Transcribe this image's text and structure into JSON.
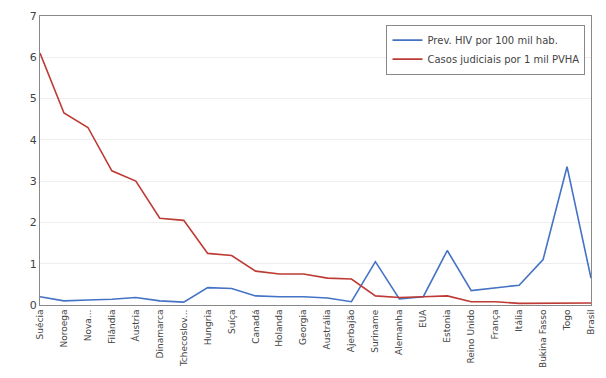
{
  "chart_data": {
    "type": "line",
    "categories": [
      "Suécia",
      "Noroega",
      "Nova...",
      "Filândia",
      "Áustria",
      "Dinamarca",
      "Tchecoslov...",
      "Hungria",
      "Suíça",
      "Canadá",
      "Holanda",
      "Georgia",
      "Austrália",
      "Ajerbajão",
      "Suriname",
      "Alemanha",
      "EUA",
      "Estonia",
      "Reino Unido",
      "França",
      "Itália",
      "Bukina Fasso",
      "Togo",
      "Brasil"
    ],
    "series": [
      {
        "name": "Prev. HIV por 100 mil hab.",
        "color": "#4472C4",
        "values": [
          0.2,
          0.1,
          0.12,
          0.14,
          0.18,
          0.1,
          0.07,
          0.42,
          0.4,
          0.22,
          0.2,
          0.2,
          0.17,
          0.08,
          1.05,
          0.15,
          0.2,
          1.32,
          0.35,
          0.42,
          0.48,
          1.1,
          3.35,
          0.65
        ]
      },
      {
        "name": "Casos judiciais por 1 mil PVHA",
        "color": "#BE3A34",
        "values": [
          6.1,
          4.65,
          4.3,
          3.25,
          3.0,
          2.1,
          2.05,
          1.25,
          1.2,
          0.82,
          0.75,
          0.75,
          0.65,
          0.63,
          0.22,
          0.18,
          0.2,
          0.22,
          0.08,
          0.08,
          0.04,
          0.04,
          0.04,
          0.05
        ]
      }
    ],
    "ylim": [
      0,
      7
    ],
    "yticks": [
      0,
      1,
      2,
      3,
      4,
      5,
      6,
      7
    ],
    "grid": true,
    "legend": "upper right"
  }
}
